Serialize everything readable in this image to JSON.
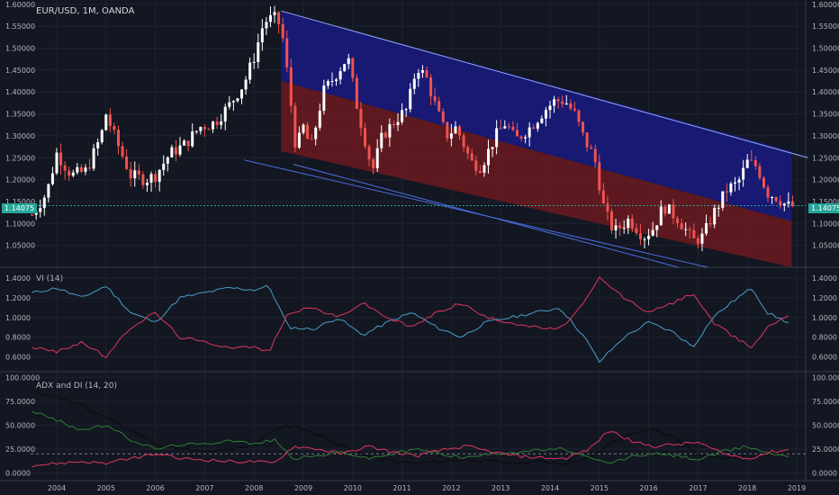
{
  "header": {
    "symbol_title": "EUR/USD, 1M, OANDA",
    "vi_title": "VI (14)",
    "adx_title": "ADX and DI (14, 20)",
    "last_price": "1.14075"
  },
  "colors": {
    "background": "#131722",
    "grid": "#1f2330",
    "up": "#ffffff",
    "down": "#ef5350",
    "channel_upper": "#1a1a80",
    "channel_lower": "#6b1a1f",
    "vi_plus": "#4a9ec7",
    "vi_minus": "#e0355e",
    "adx": "#0a0a0a",
    "di_plus": "#2e7d32",
    "di_minus": "#e0355e",
    "last_price": "#26a69a"
  },
  "chart_data": [
    {
      "name": "price",
      "type": "candlestick",
      "title": "EUR/USD, 1M, OANDA",
      "x_ticks": [
        "2004",
        "2005",
        "2006",
        "2007",
        "2008",
        "2009",
        "2010",
        "2011",
        "2012",
        "2013",
        "2014",
        "2015",
        "2016",
        "2017",
        "2018",
        "2019"
      ],
      "y_ticks": [
        "1.60000",
        "1.55000",
        "1.50000",
        "1.45000",
        "1.40000",
        "1.35000",
        "1.30000",
        "1.25000",
        "1.20000",
        "1.15000",
        "1.10000",
        "1.05000"
      ],
      "ylim": [
        1.0,
        1.61
      ],
      "last_value": 1.14075,
      "close_keypoints": [
        [
          2003.5,
          1.12
        ],
        [
          2003.8,
          1.17
        ],
        [
          2004.0,
          1.26
        ],
        [
          2004.3,
          1.21
        ],
        [
          2004.6,
          1.22
        ],
        [
          2004.9,
          1.3
        ],
        [
          2005.0,
          1.35
        ],
        [
          2005.2,
          1.29
        ],
        [
          2005.5,
          1.21
        ],
        [
          2005.8,
          1.2
        ],
        [
          2006.0,
          1.21
        ],
        [
          2006.3,
          1.26
        ],
        [
          2006.6,
          1.28
        ],
        [
          2006.9,
          1.32
        ],
        [
          2007.2,
          1.33
        ],
        [
          2007.5,
          1.37
        ],
        [
          2007.8,
          1.42
        ],
        [
          2008.0,
          1.48
        ],
        [
          2008.2,
          1.56
        ],
        [
          2008.4,
          1.57
        ],
        [
          2008.55,
          1.55
        ],
        [
          2008.7,
          1.42
        ],
        [
          2008.85,
          1.27
        ],
        [
          2009.0,
          1.32
        ],
        [
          2009.15,
          1.27
        ],
        [
          2009.4,
          1.4
        ],
        [
          2009.6,
          1.43
        ],
        [
          2009.9,
          1.48
        ],
        [
          2010.1,
          1.36
        ],
        [
          2010.4,
          1.22
        ],
        [
          2010.6,
          1.3
        ],
        [
          2010.9,
          1.34
        ],
        [
          2011.1,
          1.36
        ],
        [
          2011.3,
          1.46
        ],
        [
          2011.5,
          1.43
        ],
        [
          2011.7,
          1.36
        ],
        [
          2011.9,
          1.3
        ],
        [
          2012.1,
          1.32
        ],
        [
          2012.4,
          1.24
        ],
        [
          2012.6,
          1.23
        ],
        [
          2012.9,
          1.3
        ],
        [
          2013.1,
          1.33
        ],
        [
          2013.3,
          1.29
        ],
        [
          2013.6,
          1.32
        ],
        [
          2013.9,
          1.36
        ],
        [
          2014.1,
          1.38
        ],
        [
          2014.3,
          1.38
        ],
        [
          2014.5,
          1.35
        ],
        [
          2014.7,
          1.29
        ],
        [
          2014.9,
          1.25
        ],
        [
          2015.1,
          1.13
        ],
        [
          2015.3,
          1.08
        ],
        [
          2015.6,
          1.11
        ],
        [
          2015.9,
          1.07
        ],
        [
          2016.1,
          1.09
        ],
        [
          2016.3,
          1.14
        ],
        [
          2016.6,
          1.11
        ],
        [
          2016.9,
          1.06
        ],
        [
          2017.1,
          1.07
        ],
        [
          2017.3,
          1.12
        ],
        [
          2017.6,
          1.18
        ],
        [
          2017.8,
          1.19
        ],
        [
          2018.0,
          1.24
        ],
        [
          2018.2,
          1.23
        ],
        [
          2018.4,
          1.17
        ],
        [
          2018.6,
          1.16
        ],
        [
          2018.8,
          1.14
        ],
        [
          2018.9,
          1.14
        ]
      ]
    },
    {
      "name": "vi",
      "type": "line",
      "title": "VI (14)",
      "y_ticks": [
        "1.4000",
        "1.2000",
        "1.0000",
        "0.8000",
        "0.6000"
      ],
      "ylim": [
        0.45,
        1.5
      ],
      "series": [
        {
          "name": "VI+",
          "points": [
            [
              2003.5,
              1.25
            ],
            [
              2004.0,
              1.3
            ],
            [
              2004.5,
              1.2
            ],
            [
              2005.0,
              1.32
            ],
            [
              2005.5,
              1.05
            ],
            [
              2006.0,
              0.95
            ],
            [
              2006.5,
              1.2
            ],
            [
              2007.0,
              1.25
            ],
            [
              2007.5,
              1.3
            ],
            [
              2008.0,
              1.28
            ],
            [
              2008.3,
              1.32
            ],
            [
              2008.7,
              0.9
            ],
            [
              2009.2,
              0.88
            ],
            [
              2009.7,
              1.0
            ],
            [
              2010.2,
              0.82
            ],
            [
              2010.7,
              0.95
            ],
            [
              2011.2,
              1.05
            ],
            [
              2011.7,
              0.9
            ],
            [
              2012.2,
              0.8
            ],
            [
              2012.7,
              0.95
            ],
            [
              2013.2,
              1.0
            ],
            [
              2013.7,
              1.05
            ],
            [
              2014.2,
              1.1
            ],
            [
              2014.7,
              0.8
            ],
            [
              2015.0,
              0.55
            ],
            [
              2015.5,
              0.8
            ],
            [
              2016.0,
              0.95
            ],
            [
              2016.5,
              0.85
            ],
            [
              2016.9,
              0.7
            ],
            [
              2017.3,
              1.0
            ],
            [
              2017.8,
              1.2
            ],
            [
              2018.1,
              1.3
            ],
            [
              2018.4,
              1.05
            ],
            [
              2018.9,
              0.93
            ]
          ]
        },
        {
          "name": "VI-",
          "points": [
            [
              2003.5,
              0.7
            ],
            [
              2004.0,
              0.65
            ],
            [
              2004.5,
              0.75
            ],
            [
              2005.0,
              0.6
            ],
            [
              2005.5,
              0.9
            ],
            [
              2006.0,
              1.05
            ],
            [
              2006.5,
              0.8
            ],
            [
              2007.0,
              0.75
            ],
            [
              2007.5,
              0.7
            ],
            [
              2008.0,
              0.7
            ],
            [
              2008.3,
              0.65
            ],
            [
              2008.7,
              1.05
            ],
            [
              2009.2,
              1.1
            ],
            [
              2009.7,
              1.0
            ],
            [
              2010.2,
              1.15
            ],
            [
              2010.7,
              1.0
            ],
            [
              2011.2,
              0.9
            ],
            [
              2011.7,
              1.05
            ],
            [
              2012.2,
              1.15
            ],
            [
              2012.7,
              1.0
            ],
            [
              2013.2,
              0.95
            ],
            [
              2013.7,
              0.9
            ],
            [
              2014.2,
              0.88
            ],
            [
              2014.7,
              1.15
            ],
            [
              2015.0,
              1.4
            ],
            [
              2015.5,
              1.2
            ],
            [
              2016.0,
              1.05
            ],
            [
              2016.5,
              1.15
            ],
            [
              2016.9,
              1.25
            ],
            [
              2017.3,
              0.95
            ],
            [
              2017.8,
              0.78
            ],
            [
              2018.1,
              0.7
            ],
            [
              2018.4,
              0.9
            ],
            [
              2018.9,
              1.05
            ]
          ]
        }
      ]
    },
    {
      "name": "adx",
      "type": "line",
      "title": "ADX and DI (14, 20)",
      "y_ticks": [
        "100.0000",
        "75.0000",
        "50.0000",
        "25.0000",
        "0.0000"
      ],
      "ylim": [
        -8,
        105
      ],
      "reference_level": 20,
      "series": [
        {
          "name": "ADX",
          "points": [
            [
              2003.5,
              85
            ],
            [
              2004.0,
              80
            ],
            [
              2004.5,
              70
            ],
            [
              2005.0,
              58
            ],
            [
              2005.5,
              45
            ],
            [
              2006.0,
              30
            ],
            [
              2006.5,
              25
            ],
            [
              2007.0,
              22
            ],
            [
              2007.5,
              24
            ],
            [
              2008.0,
              30
            ],
            [
              2008.4,
              45
            ],
            [
              2008.8,
              50
            ],
            [
              2009.3,
              40
            ],
            [
              2009.8,
              28
            ],
            [
              2010.3,
              18
            ],
            [
              2010.8,
              12
            ],
            [
              2011.3,
              10
            ],
            [
              2011.8,
              12
            ],
            [
              2012.3,
              14
            ],
            [
              2012.8,
              12
            ],
            [
              2013.3,
              10
            ],
            [
              2013.8,
              12
            ],
            [
              2014.3,
              10
            ],
            [
              2014.8,
              15
            ],
            [
              2015.2,
              30
            ],
            [
              2015.7,
              42
            ],
            [
              2016.1,
              45
            ],
            [
              2016.6,
              35
            ],
            [
              2017.0,
              20
            ],
            [
              2017.5,
              15
            ],
            [
              2018.0,
              18
            ],
            [
              2018.5,
              20
            ],
            [
              2018.9,
              22
            ]
          ]
        },
        {
          "name": "+DI",
          "points": [
            [
              2003.5,
              65
            ],
            [
              2004.0,
              55
            ],
            [
              2004.5,
              45
            ],
            [
              2005.0,
              50
            ],
            [
              2005.5,
              35
            ],
            [
              2006.0,
              25
            ],
            [
              2006.5,
              30
            ],
            [
              2007.0,
              30
            ],
            [
              2007.5,
              35
            ],
            [
              2008.0,
              30
            ],
            [
              2008.4,
              35
            ],
            [
              2008.8,
              15
            ],
            [
              2009.3,
              18
            ],
            [
              2009.8,
              22
            ],
            [
              2010.3,
              15
            ],
            [
              2010.8,
              20
            ],
            [
              2011.3,
              25
            ],
            [
              2011.8,
              20
            ],
            [
              2012.3,
              16
            ],
            [
              2012.8,
              20
            ],
            [
              2013.3,
              22
            ],
            [
              2013.8,
              24
            ],
            [
              2014.3,
              25
            ],
            [
              2014.8,
              15
            ],
            [
              2015.2,
              10
            ],
            [
              2015.7,
              18
            ],
            [
              2016.1,
              20
            ],
            [
              2016.6,
              18
            ],
            [
              2017.0,
              14
            ],
            [
              2017.5,
              22
            ],
            [
              2018.0,
              28
            ],
            [
              2018.5,
              20
            ],
            [
              2018.9,
              18
            ]
          ]
        },
        {
          "name": "-DI",
          "points": [
            [
              2003.5,
              8
            ],
            [
              2004.0,
              10
            ],
            [
              2004.5,
              12
            ],
            [
              2005.0,
              10
            ],
            [
              2005.5,
              15
            ],
            [
              2006.0,
              20
            ],
            [
              2006.5,
              15
            ],
            [
              2007.0,
              14
            ],
            [
              2007.5,
              12
            ],
            [
              2008.0,
              12
            ],
            [
              2008.4,
              10
            ],
            [
              2008.8,
              28
            ],
            [
              2009.3,
              25
            ],
            [
              2009.8,
              20
            ],
            [
              2010.3,
              28
            ],
            [
              2010.8,
              22
            ],
            [
              2011.3,
              18
            ],
            [
              2011.8,
              24
            ],
            [
              2012.3,
              28
            ],
            [
              2012.8,
              22
            ],
            [
              2013.3,
              18
            ],
            [
              2013.8,
              16
            ],
            [
              2014.3,
              15
            ],
            [
              2014.8,
              25
            ],
            [
              2015.2,
              45
            ],
            [
              2015.7,
              32
            ],
            [
              2016.1,
              28
            ],
            [
              2016.6,
              30
            ],
            [
              2017.0,
              32
            ],
            [
              2017.5,
              20
            ],
            [
              2018.0,
              15
            ],
            [
              2018.5,
              22
            ],
            [
              2018.9,
              25
            ]
          ]
        }
      ]
    }
  ]
}
